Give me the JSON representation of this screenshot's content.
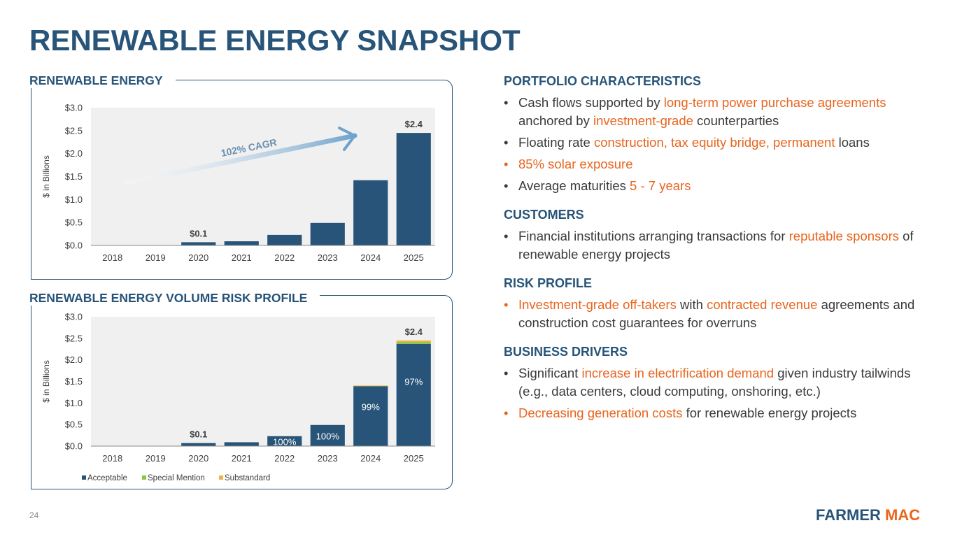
{
  "page": {
    "title": "RENEWABLE ENERGY SNAPSHOT",
    "page_number": "24",
    "logo": {
      "part1": "FARMER",
      "part2": "MAC"
    }
  },
  "colors": {
    "navy": "#275478",
    "orange": "#e8651e",
    "green": "#8cc63f",
    "gold": "#f4b04a",
    "plot_bg": "#f0f0f0",
    "arrow": "#6fa3cc"
  },
  "chart1": {
    "panel_title": "RENEWABLE ENERGY",
    "cagr_label": "102% CAGR"
  },
  "chart2": {
    "panel_title": "RENEWABLE ENERGY VOLUME RISK PROFILE"
  },
  "chart_data": [
    {
      "type": "bar",
      "title": "RENEWABLE ENERGY",
      "ylabel": "$ in Billions",
      "xlabel": "",
      "categories": [
        "2018",
        "2019",
        "2020",
        "2021",
        "2022",
        "2023",
        "2024",
        "2025"
      ],
      "values": [
        0.0,
        0.0,
        0.07,
        0.09,
        0.23,
        0.49,
        1.42,
        2.45
      ],
      "data_labels": [
        {
          "index": 2,
          "text": "$0.1"
        },
        {
          "index": 7,
          "text": "$2.4"
        }
      ],
      "yticks": [
        "$0.0",
        "$0.5",
        "$1.0",
        "$1.5",
        "$2.0",
        "$2.5",
        "$3.0"
      ],
      "ylim": [
        0,
        3.0
      ],
      "annotations": [
        "102% CAGR"
      ],
      "grid": false
    },
    {
      "type": "bar",
      "stacked": true,
      "title": "RENEWABLE ENERGY VOLUME RISK PROFILE",
      "ylabel": "$ in Billions",
      "xlabel": "",
      "categories": [
        "2018",
        "2019",
        "2020",
        "2021",
        "2022",
        "2023",
        "2024",
        "2025"
      ],
      "series": [
        {
          "name": "Acceptable",
          "values": [
            0.0,
            0.0,
            0.07,
            0.09,
            0.23,
            0.49,
            1.39,
            2.37
          ]
        },
        {
          "name": "Special Mention",
          "values": [
            0,
            0,
            0,
            0,
            0,
            0,
            0.01,
            0.045
          ]
        },
        {
          "name": "Substandard",
          "values": [
            0,
            0,
            0,
            0,
            0,
            0,
            0.005,
            0.035
          ]
        }
      ],
      "data_labels": [
        {
          "index": 2,
          "text": "$0.1"
        },
        {
          "index": 7,
          "text": "$2.4"
        }
      ],
      "pct_labels": [
        {
          "index": 4,
          "text": "100%"
        },
        {
          "index": 5,
          "text": "100%"
        },
        {
          "index": 6,
          "text": "99%"
        },
        {
          "index": 7,
          "text": "97%"
        }
      ],
      "yticks": [
        "$0.0",
        "$0.5",
        "$1.0",
        "$1.5",
        "$2.0",
        "$2.5",
        "$3.0"
      ],
      "ylim": [
        0,
        3.0
      ],
      "legend": "bottom-left",
      "grid": false
    }
  ],
  "right": {
    "portfolio": {
      "heading": "PORTFOLIO CHARACTERISTICS",
      "b1": {
        "t1": "Cash flows supported by ",
        "h1": "long-term power purchase agreements",
        "t2": " anchored by ",
        "h2": "investment-grade",
        "t3": " counterparties"
      },
      "b2": {
        "t1": "Floating rate ",
        "h1": "construction, tax equity bridge, permanent",
        "t2": " loans"
      },
      "b3": {
        "h1": "85% solar exposure"
      },
      "b4": {
        "t1": "Average maturities ",
        "h1": "5 - 7 years"
      }
    },
    "customers": {
      "heading": "CUSTOMERS",
      "b1": {
        "t1": "Financial institutions arranging transactions for ",
        "h1": "reputable sponsors",
        "t2": " of renewable energy projects"
      }
    },
    "risk": {
      "heading": "RISK PROFILE",
      "b1": {
        "h1": "Investment-grade off-takers",
        "t1": " with ",
        "h2": "contracted revenue",
        "t2": " agreements and construction cost guarantees for overruns"
      }
    },
    "drivers": {
      "heading": "BUSINESS DRIVERS",
      "b1": {
        "t1": "Significant ",
        "h1": "increase in electrification demand",
        "t2": " given industry tailwinds (e.g., data centers, cloud computing, onshoring, etc.)"
      },
      "b2": {
        "h1": "Decreasing generation costs",
        "t1": " for renewable energy projects"
      }
    }
  }
}
